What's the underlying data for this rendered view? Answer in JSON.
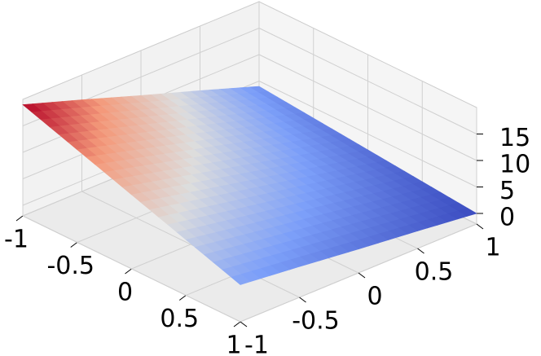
{
  "chart_data": {
    "type": "surface",
    "x": [
      -1,
      -0.5,
      0,
      0.5,
      1
    ],
    "y": [
      -1,
      -0.5,
      0,
      0.5,
      1
    ],
    "z": [
      [
        19,
        15.3,
        11.5,
        7.8,
        4
      ],
      [
        15.5,
        12.4,
        9.3,
        6.1,
        3
      ],
      [
        12,
        9.5,
        7,
        4.5,
        2
      ],
      [
        8.5,
        6.6,
        4.8,
        2.9,
        1
      ],
      [
        5,
        3.8,
        2.5,
        1.3,
        0
      ]
    ],
    "xlim": [
      -1,
      1
    ],
    "ylim": [
      -1,
      1
    ],
    "zlim": [
      -2,
      20
    ],
    "xticks": [
      -1,
      -0.5,
      0,
      0.5,
      1
    ],
    "yticks": [
      -1,
      -0.5,
      0,
      0.5,
      1
    ],
    "zticks": [
      0,
      5,
      10,
      15
    ],
    "colormap": "coolwarm",
    "grid": true
  }
}
